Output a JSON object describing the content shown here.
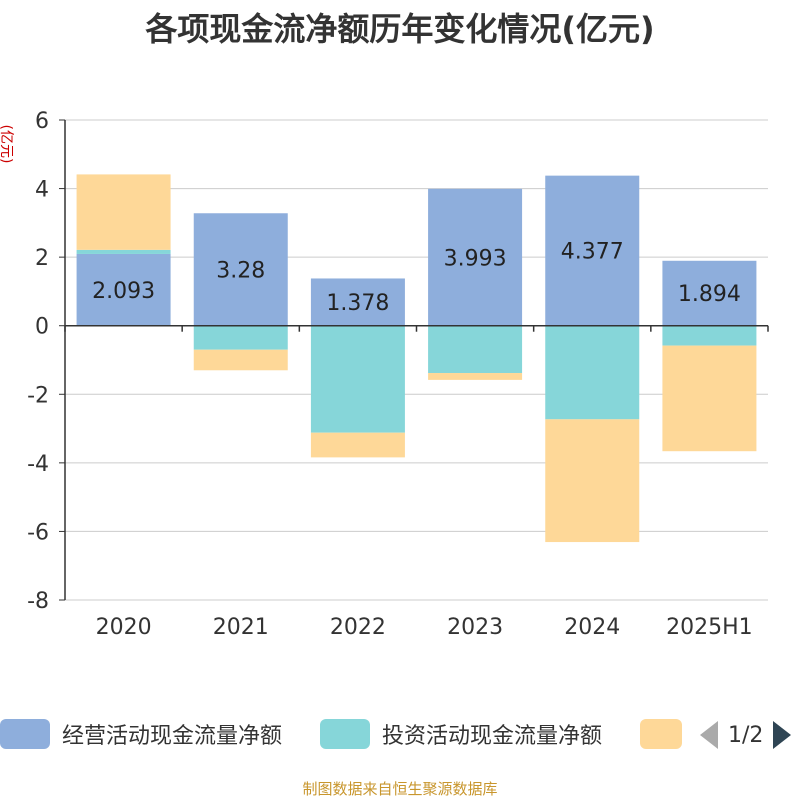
{
  "title": "各项现金流净额历年变化情况(亿元)",
  "source": "制图数据来自恒生聚源数据库",
  "legend_pager": "1/2",
  "chart_data": {
    "type": "bar",
    "stacked": true,
    "title": "各项现金流净额历年变化情况(亿元)",
    "ylabel": "(亿元)",
    "ylim": [
      -8,
      6
    ],
    "yticks": [
      6,
      4,
      2,
      0,
      -2,
      -4,
      -6,
      -8
    ],
    "grid": true,
    "categories": [
      "2020",
      "2021",
      "2022",
      "2023",
      "2024",
      "2025H1"
    ],
    "series": [
      {
        "name": "经营活动现金流量净额",
        "color": "#8eaedc",
        "values": [
          2.093,
          3.28,
          1.378,
          3.993,
          4.377,
          1.894
        ],
        "labels": [
          "2.093",
          "3.28",
          "1.378",
          "3.993",
          "4.377",
          "1.894"
        ]
      },
      {
        "name": "投资活动现金流量净额",
        "color": "#86d6d9",
        "values": [
          0.12,
          -0.7,
          -3.12,
          -1.38,
          -2.73,
          -0.58
        ]
      },
      {
        "name": "",
        "color": "#fed898",
        "values": [
          2.2,
          -0.6,
          -0.72,
          -0.2,
          -3.58,
          -3.08
        ]
      }
    ]
  }
}
